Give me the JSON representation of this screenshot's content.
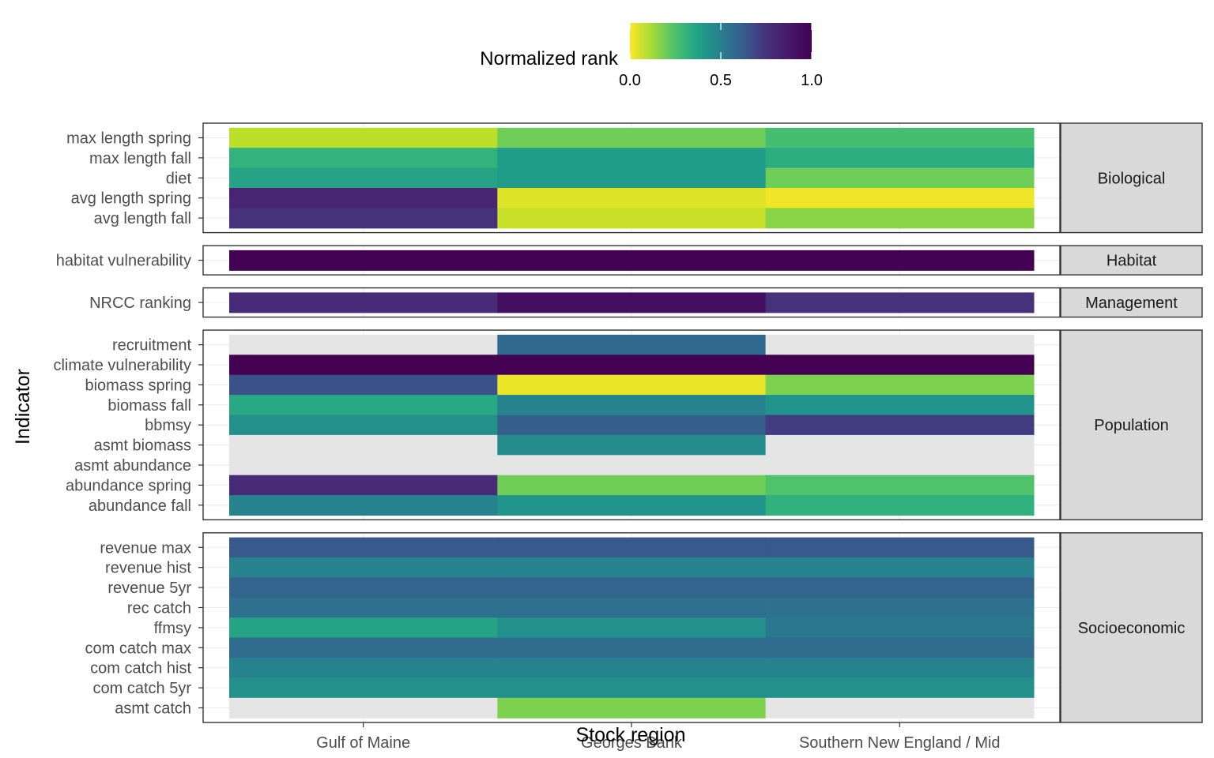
{
  "chart_data": {
    "type": "heatmap",
    "xlabel": "Stock region",
    "ylabel": "Indicator",
    "x_categories": [
      "Gulf of Maine",
      "Georges Bank",
      "Southern New England / Mid"
    ],
    "legend": {
      "title": "Normalized rank",
      "position": "top",
      "range": [
        0,
        1
      ],
      "ticks": [
        "0.0",
        "0.5",
        "1.0"
      ],
      "colorscale": "viridis (reversed: 0 = yellow, 1 = purple)"
    },
    "grid": true,
    "missing_color": "#e5e5e5",
    "panels": [
      {
        "name": "Biological",
        "rows": [
          {
            "indicator": "max length spring",
            "values": [
              0.1,
              0.22,
              0.3
            ]
          },
          {
            "indicator": "max length fall",
            "values": [
              0.35,
              0.45,
              0.38
            ]
          },
          {
            "indicator": "diet",
            "values": [
              0.42,
              0.45,
              0.22
            ]
          },
          {
            "indicator": "avg length spring",
            "values": [
              0.9,
              0.05,
              0.02
            ]
          },
          {
            "indicator": "avg length fall",
            "values": [
              0.86,
              0.08,
              0.18
            ]
          }
        ]
      },
      {
        "name": "Habitat",
        "rows": [
          {
            "indicator": "habitat vulnerability",
            "values": [
              1.0,
              1.0,
              1.0
            ]
          }
        ]
      },
      {
        "name": "Management",
        "rows": [
          {
            "indicator": "NRCC ranking",
            "values": [
              0.88,
              0.96,
              0.86
            ]
          }
        ]
      },
      {
        "name": "Population",
        "rows": [
          {
            "indicator": "recruitment",
            "values": [
              null,
              0.66,
              null
            ]
          },
          {
            "indicator": "climate vulnerability",
            "values": [
              1.0,
              1.0,
              1.0
            ]
          },
          {
            "indicator": "biomass spring",
            "values": [
              0.75,
              0.03,
              0.2
            ]
          },
          {
            "indicator": "biomass fall",
            "values": [
              0.4,
              0.55,
              0.48
            ]
          },
          {
            "indicator": "bbmsy",
            "values": [
              0.5,
              0.7,
              0.82
            ]
          },
          {
            "indicator": "asmt biomass",
            "values": [
              null,
              0.52,
              null
            ]
          },
          {
            "indicator": "asmt abundance",
            "values": [
              null,
              null,
              null
            ]
          },
          {
            "indicator": "abundance spring",
            "values": [
              0.88,
              0.22,
              0.28
            ]
          },
          {
            "indicator": "abundance fall",
            "values": [
              0.55,
              0.48,
              0.36
            ]
          }
        ]
      },
      {
        "name": "Socioeconomic",
        "rows": [
          {
            "indicator": "revenue max",
            "values": [
              0.72,
              0.72,
              0.72
            ]
          },
          {
            "indicator": "revenue hist",
            "values": [
              0.55,
              0.55,
              0.55
            ]
          },
          {
            "indicator": "revenue 5yr",
            "values": [
              0.68,
              0.68,
              0.68
            ]
          },
          {
            "indicator": "rec catch",
            "values": [
              0.63,
              0.63,
              0.63
            ]
          },
          {
            "indicator": "ffmsy",
            "values": [
              0.42,
              0.5,
              0.6
            ]
          },
          {
            "indicator": "com catch max",
            "values": [
              0.65,
              0.65,
              0.65
            ]
          },
          {
            "indicator": "com catch hist",
            "values": [
              0.55,
              0.55,
              0.55
            ]
          },
          {
            "indicator": "com catch 5yr",
            "values": [
              0.5,
              0.5,
              0.5
            ]
          },
          {
            "indicator": "asmt catch",
            "values": [
              null,
              0.2,
              null
            ]
          }
        ]
      }
    ]
  }
}
